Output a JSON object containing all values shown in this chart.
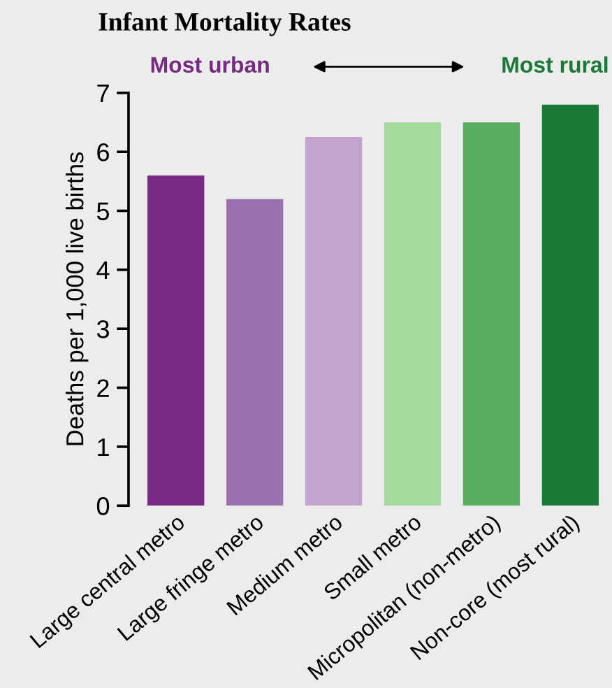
{
  "chart_data": {
    "type": "bar",
    "title": "Infant Mortality Rates",
    "annotations": [
      "Most urban",
      "Most rural"
    ],
    "ylabel": "Deaths per 1,000 live births",
    "categories": [
      "Large central metro",
      "Large fringe metro",
      "Medium metro",
      "Small metro",
      "Micropolitan (non-metro)",
      "Non-core (most rural)"
    ],
    "values": [
      5.6,
      5.2,
      6.25,
      6.5,
      6.5,
      6.8
    ],
    "colors": [
      "#772a82",
      "#9a71ad",
      "#c2a4cf",
      "#a6dba0",
      "#5aae61",
      "#1b7837"
    ],
    "ylim": [
      0,
      7
    ],
    "yticks": [
      0,
      1,
      2,
      3,
      4,
      5,
      6,
      7
    ],
    "grid": false
  }
}
